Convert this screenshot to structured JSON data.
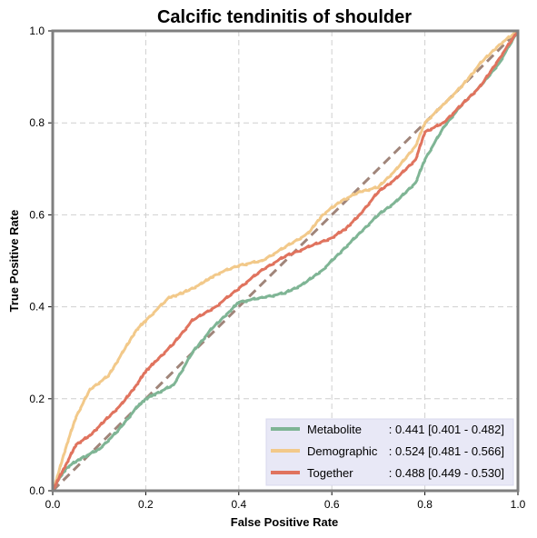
{
  "chart_data": {
    "type": "line",
    "title": "Calcific tendinitis of shoulder",
    "xlabel": "False Positive Rate",
    "ylabel": "True Positive Rate",
    "xlim": [
      0,
      1
    ],
    "ylim": [
      0,
      1
    ],
    "xticks": [
      "0.0",
      "0.2",
      "0.4",
      "0.6",
      "0.8",
      "1.0"
    ],
    "yticks": [
      "0.0",
      "0.2",
      "0.4",
      "0.6",
      "0.8",
      "1.0"
    ],
    "grid": true,
    "legend_position": "lower-right",
    "diagonal_color": "#a0857a",
    "series": [
      {
        "name": "Metabolite",
        "auc_text": ": 0.441 [0.401 - 0.482]",
        "color": "#7fb595",
        "x": [
          0.0,
          0.01,
          0.03,
          0.06,
          0.1,
          0.14,
          0.18,
          0.2,
          0.22,
          0.26,
          0.3,
          0.34,
          0.38,
          0.4,
          0.45,
          0.5,
          0.54,
          0.58,
          0.62,
          0.66,
          0.7,
          0.74,
          0.78,
          0.8,
          0.84,
          0.88,
          0.92,
          0.96,
          1.0
        ],
        "y": [
          0.0,
          0.02,
          0.05,
          0.07,
          0.09,
          0.13,
          0.18,
          0.2,
          0.21,
          0.23,
          0.3,
          0.35,
          0.39,
          0.41,
          0.42,
          0.43,
          0.45,
          0.48,
          0.52,
          0.56,
          0.6,
          0.63,
          0.67,
          0.72,
          0.79,
          0.84,
          0.88,
          0.93,
          1.0
        ]
      },
      {
        "name": "Demographic",
        "auc_text": ": 0.524 [0.481 - 0.566]",
        "color": "#f2c98a",
        "x": [
          0.0,
          0.01,
          0.03,
          0.05,
          0.08,
          0.12,
          0.15,
          0.18,
          0.2,
          0.25,
          0.28,
          0.32,
          0.35,
          0.4,
          0.45,
          0.5,
          0.55,
          0.58,
          0.62,
          0.66,
          0.7,
          0.74,
          0.78,
          0.8,
          0.84,
          0.88,
          0.92,
          0.96,
          1.0
        ],
        "y": [
          0.0,
          0.03,
          0.1,
          0.16,
          0.22,
          0.25,
          0.3,
          0.35,
          0.37,
          0.42,
          0.43,
          0.45,
          0.47,
          0.49,
          0.5,
          0.53,
          0.56,
          0.6,
          0.63,
          0.65,
          0.66,
          0.7,
          0.75,
          0.8,
          0.84,
          0.88,
          0.93,
          0.97,
          1.0
        ]
      },
      {
        "name": "Together",
        "auc_text": ": 0.488 [0.449 - 0.530]",
        "color": "#e0735e",
        "x": [
          0.0,
          0.01,
          0.03,
          0.05,
          0.08,
          0.11,
          0.15,
          0.18,
          0.2,
          0.22,
          0.26,
          0.3,
          0.35,
          0.4,
          0.45,
          0.5,
          0.55,
          0.6,
          0.63,
          0.66,
          0.7,
          0.74,
          0.78,
          0.8,
          0.84,
          0.88,
          0.92,
          0.96,
          1.0
        ],
        "y": [
          0.0,
          0.02,
          0.06,
          0.1,
          0.12,
          0.15,
          0.19,
          0.23,
          0.26,
          0.28,
          0.32,
          0.37,
          0.4,
          0.44,
          0.48,
          0.51,
          0.53,
          0.55,
          0.57,
          0.6,
          0.65,
          0.68,
          0.72,
          0.78,
          0.8,
          0.84,
          0.88,
          0.94,
          1.0
        ]
      }
    ]
  }
}
